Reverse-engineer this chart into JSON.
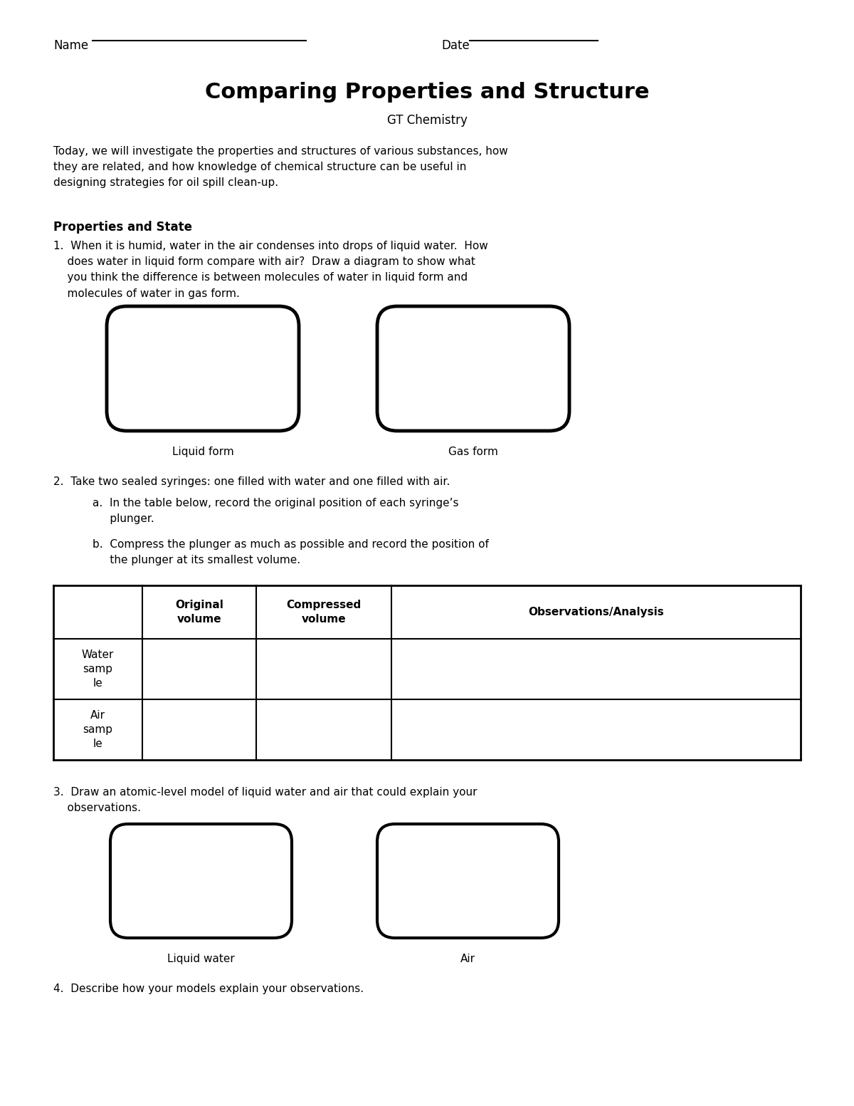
{
  "title": "Comparing Properties and Structure",
  "subtitle": "GT Chemistry",
  "name_label": "Name",
  "date_label": "Date",
  "intro_text": "Today, we will investigate the properties and structures of various substances, how\nthey are related, and how knowledge of chemical structure can be useful in\ndesigning strategies for oil spill clean-up.",
  "section_title": "Properties and State",
  "q1_text": "1.  When it is humid, water in the air condenses into drops of liquid water.  How\n    does water in liquid form compare with air?  Draw a diagram to show what\n    you think the difference is between molecules of water in liquid form and\n    molecules of water in gas form.",
  "box1_label": "Liquid form",
  "box2_label": "Gas form",
  "q2_text": "2.  Take two sealed syringes: one filled with water and one filled with air.",
  "q2a_text": "a.  In the table below, record the original position of each syringe’s\n     plunger.",
  "q2b_text": "b.  Compress the plunger as much as possible and record the position of\n     the plunger at its smallest volume.",
  "table_headers": [
    "",
    "Original\nvolume",
    "Compressed\nvolume",
    "Observations/Analysis"
  ],
  "table_row1": [
    "Water\nsamp\nle",
    "",
    "",
    ""
  ],
  "table_row2": [
    "Air\nsamp\nle",
    "",
    "",
    ""
  ],
  "q3_text": "3.  Draw an atomic-level model of liquid water and air that could explain your\n    observations.",
  "box3_label": "Liquid water",
  "box4_label": "Air",
  "q4_text": "4.  Describe how your models explain your observations.",
  "bg_color": "#ffffff",
  "text_color": "#000000",
  "font_family": "DejaVu Sans",
  "title_fontsize": 22,
  "subtitle_fontsize": 12,
  "body_fontsize": 11,
  "section_fontsize": 12,
  "label_fontsize": 11
}
